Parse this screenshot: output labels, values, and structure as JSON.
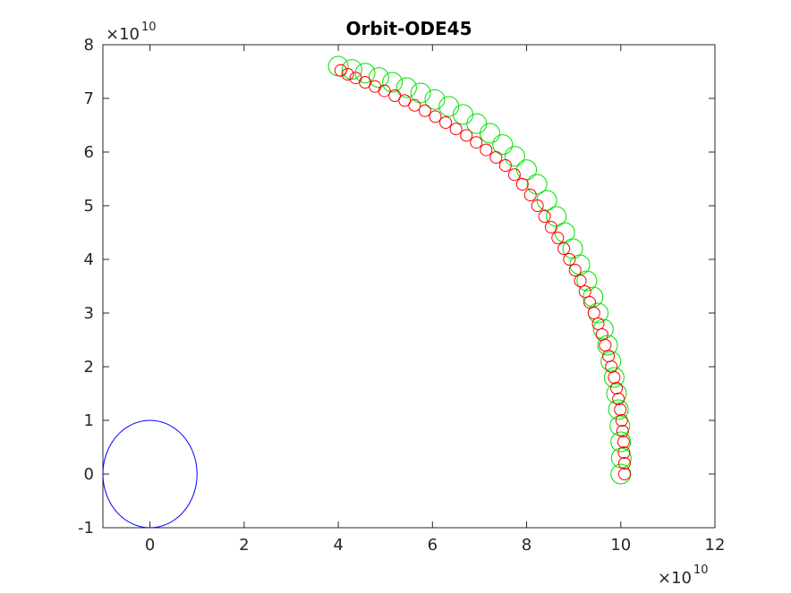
{
  "chart_data": {
    "type": "scatter",
    "title": "Orbit-ODE45",
    "xlabel": "",
    "ylabel": "",
    "xlim": [
      -1,
      12
    ],
    "ylim": [
      -1,
      8
    ],
    "x_exponent": "×10",
    "x_exponent_power": "10",
    "y_exponent": "×10",
    "y_exponent_power": "10",
    "x_ticks": [
      0,
      2,
      4,
      6,
      8,
      10,
      12
    ],
    "y_ticks": [
      -1,
      0,
      1,
      2,
      3,
      4,
      5,
      6,
      7,
      8
    ],
    "grid": false,
    "legend": "none",
    "central_body": {
      "x": 0,
      "y": 0,
      "radius": 1,
      "color": "#0000ff"
    },
    "series": [
      {
        "color": "#00e000",
        "marker": "large-circle",
        "points": [
          [
            10.0,
            -0.0
          ],
          [
            10.01,
            0.3
          ],
          [
            10.0,
            0.6
          ],
          [
            9.98,
            0.9
          ],
          [
            9.95,
            1.2
          ],
          [
            9.91,
            1.5
          ],
          [
            9.86,
            1.8
          ],
          [
            9.79,
            2.1
          ],
          [
            9.72,
            2.4
          ],
          [
            9.63,
            2.7
          ],
          [
            9.52,
            3.0
          ],
          [
            9.41,
            3.3
          ],
          [
            9.28,
            3.6
          ],
          [
            9.13,
            3.9
          ],
          [
            8.98,
            4.2
          ],
          [
            8.81,
            4.5
          ],
          [
            8.63,
            4.8
          ],
          [
            8.43,
            5.1
          ],
          [
            8.22,
            5.4
          ],
          [
            8.0,
            5.67
          ],
          [
            7.75,
            5.92
          ],
          [
            7.49,
            6.14
          ],
          [
            7.22,
            6.35
          ],
          [
            6.94,
            6.53
          ],
          [
            6.65,
            6.7
          ],
          [
            6.35,
            6.85
          ],
          [
            6.05,
            6.98
          ],
          [
            5.75,
            7.1
          ],
          [
            5.45,
            7.2
          ],
          [
            5.15,
            7.3
          ],
          [
            4.86,
            7.39
          ],
          [
            4.57,
            7.47
          ],
          [
            4.29,
            7.54
          ],
          [
            4.0,
            7.6
          ]
        ]
      },
      {
        "color": "#ff0000",
        "marker": "small-circle",
        "points": [
          [
            10.08,
            0.0
          ],
          [
            10.08,
            0.2
          ],
          [
            10.07,
            0.4
          ],
          [
            10.06,
            0.6
          ],
          [
            10.04,
            0.8
          ],
          [
            10.02,
            1.0
          ],
          [
            9.99,
            1.2
          ],
          [
            9.95,
            1.4
          ],
          [
            9.91,
            1.6
          ],
          [
            9.86,
            1.8
          ],
          [
            9.8,
            2.0
          ],
          [
            9.74,
            2.2
          ],
          [
            9.67,
            2.4
          ],
          [
            9.6,
            2.6
          ],
          [
            9.52,
            2.8
          ],
          [
            9.43,
            3.0
          ],
          [
            9.34,
            3.2
          ],
          [
            9.24,
            3.4
          ],
          [
            9.14,
            3.6
          ],
          [
            9.03,
            3.8
          ],
          [
            8.91,
            4.0
          ],
          [
            8.79,
            4.2
          ],
          [
            8.66,
            4.4
          ],
          [
            8.52,
            4.6
          ],
          [
            8.38,
            4.8
          ],
          [
            8.23,
            5.0
          ],
          [
            8.08,
            5.2
          ],
          [
            7.91,
            5.4
          ],
          [
            7.74,
            5.58
          ],
          [
            7.55,
            5.75
          ],
          [
            7.35,
            5.9
          ],
          [
            7.14,
            6.04
          ],
          [
            6.93,
            6.18
          ],
          [
            6.72,
            6.31
          ],
          [
            6.5,
            6.43
          ],
          [
            6.28,
            6.55
          ],
          [
            6.06,
            6.66
          ],
          [
            5.84,
            6.77
          ],
          [
            5.62,
            6.87
          ],
          [
            5.41,
            6.96
          ],
          [
            5.2,
            7.05
          ],
          [
            4.98,
            7.14
          ],
          [
            4.78,
            7.22
          ],
          [
            4.57,
            7.3
          ],
          [
            4.37,
            7.38
          ],
          [
            4.2,
            7.45
          ],
          [
            4.05,
            7.52
          ]
        ]
      }
    ]
  }
}
